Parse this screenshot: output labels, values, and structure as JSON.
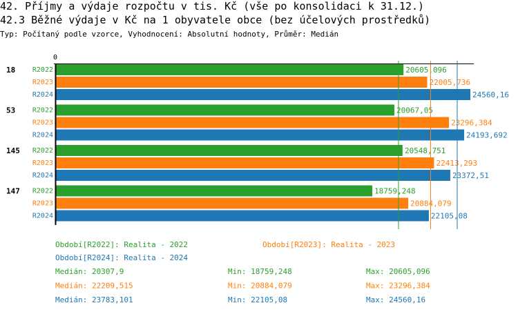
{
  "title": "42. Příjmy a výdaje rozpočtu v tis. Kč (vše po konsolidaci k 31.12.)",
  "subtitle": "42.3 Běžné výdaje v Kč na 1 obyvatele obce (bez účelových prostředků)",
  "description": "Typ: Počítaný podle vzorce, Vyhodnocení: Absolutní hodnoty, Průměr: Medián",
  "chart_data": {
    "type": "bar",
    "orientation": "horizontal",
    "axis_zero_label": "0",
    "xlim": [
      0,
      24560.16
    ],
    "categories": [
      "18",
      "53",
      "145",
      "147"
    ],
    "series": [
      {
        "name": "R2022",
        "color": "#2ca02c",
        "values": [
          20605.096,
          20067.05,
          20548.751,
          18759.248
        ],
        "labels": [
          "20605,096",
          "20067,05",
          "20548,751",
          "18759,248"
        ]
      },
      {
        "name": "R2023",
        "color": "#ff7f0e",
        "values": [
          22005.736,
          23296.384,
          22413.293,
          20884.079
        ],
        "labels": [
          "22005,736",
          "23296,384",
          "22413,293",
          "20884,079"
        ]
      },
      {
        "name": "R2024",
        "color": "#1f77b4",
        "values": [
          24560.16,
          24193.692,
          23372.51,
          22105.08
        ],
        "labels": [
          "24560,16",
          "24193,692",
          "23372,51",
          "22105,08"
        ]
      }
    ],
    "medians": [
      20307.9,
      22209.515,
      23783.101
    ],
    "legend": [
      "Období[R2022]: Realita - 2022",
      "Období[R2023]: Realita - 2023",
      "Období[R2024]: Realita - 2024"
    ],
    "stats": [
      {
        "median": "Medián: 20307,9",
        "min": "Min: 18759,248",
        "max": "Max: 20605,096"
      },
      {
        "median": "Medián: 22209,515",
        "min": "Min: 20884,079",
        "max": "Max: 23296,384"
      },
      {
        "median": "Medián: 23783,101",
        "min": "Min: 22105,08",
        "max": "Max: 24560,16"
      }
    ]
  }
}
